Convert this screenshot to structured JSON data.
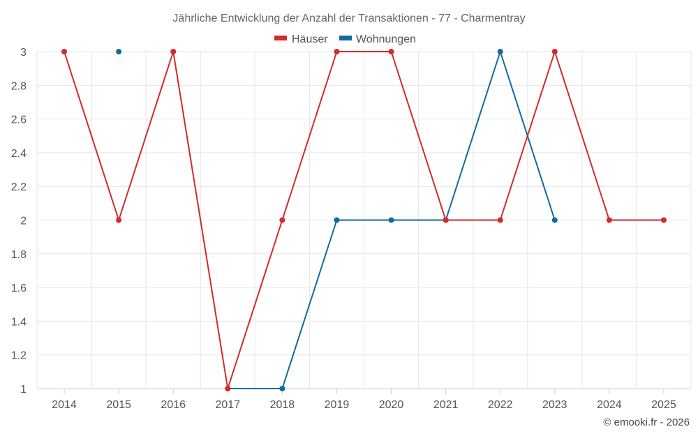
{
  "chart_data": {
    "type": "line",
    "title": "Jährliche Entwicklung der Anzahl der Transaktionen - 77 - Charmentray",
    "categories": [
      "2014",
      "2015",
      "2016",
      "2017",
      "2018",
      "2019",
      "2020",
      "2021",
      "2022",
      "2023",
      "2024",
      "2025"
    ],
    "ylim": [
      1,
      3
    ],
    "yticks": [
      "1",
      "1.2",
      "1.4",
      "1.6",
      "1.8",
      "2",
      "2.2",
      "2.4",
      "2.6",
      "2.8",
      "3"
    ],
    "grid": true,
    "legend_position": "top",
    "series": [
      {
        "name": "Häuser",
        "color": "#d32a2a",
        "values": [
          3,
          2,
          3,
          1,
          2,
          3,
          3,
          2,
          2,
          3,
          2,
          2
        ]
      },
      {
        "name": "Wohnungen",
        "color": "#0f6aa1",
        "values": [
          null,
          3,
          null,
          1,
          1,
          2,
          2,
          2,
          3,
          2,
          null,
          null
        ]
      }
    ]
  },
  "credit": "© emooki.fr - 2026"
}
